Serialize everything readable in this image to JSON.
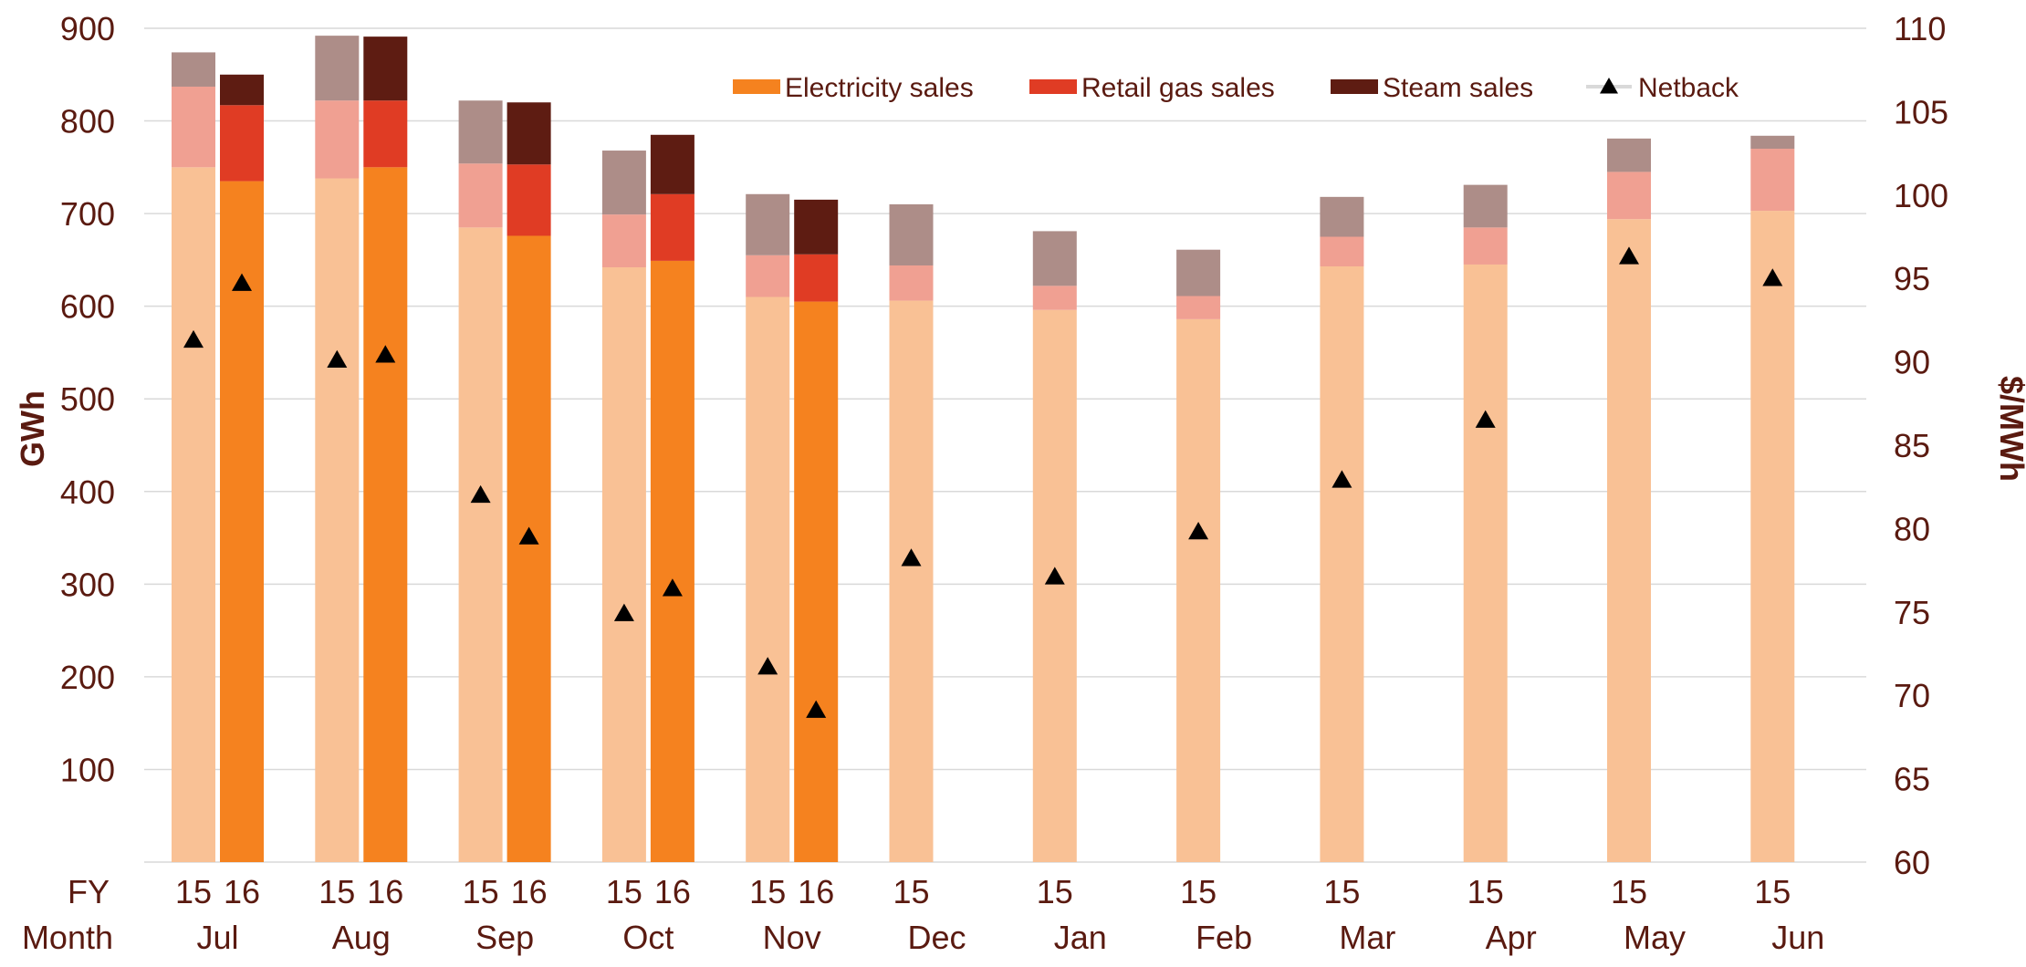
{
  "chart_data": {
    "type": "bar",
    "stacked": true,
    "title": "",
    "ylabel": "GWh",
    "y2label": "$/MWh",
    "ylim": [
      0,
      900
    ],
    "y2lim": [
      60,
      110
    ],
    "y_ticks": [
      100,
      200,
      300,
      400,
      500,
      600,
      700,
      800,
      900
    ],
    "y2_ticks": [
      60,
      65,
      70,
      75,
      80,
      85,
      90,
      95,
      100,
      105,
      110
    ],
    "grid": true,
    "legend_position": "top",
    "row_labels": {
      "fy": "FY",
      "month": "Month"
    },
    "legend": [
      {
        "key": "electricity",
        "label": "Electricity sales",
        "color": "#f5821f"
      },
      {
        "key": "gas",
        "label": "Retail gas sales",
        "color": "#e03c24"
      },
      {
        "key": "steam",
        "label": "Steam sales",
        "color": "#5e1c12"
      },
      {
        "key": "netback",
        "label": "Netback",
        "color": "#000000",
        "marker": "triangle"
      }
    ],
    "categories": [
      {
        "month": "Jul",
        "bars": [
          {
            "fy": "15",
            "electricity": 750,
            "gas": 87,
            "steam": 37,
            "netback": 91.3
          },
          {
            "fy": "16",
            "electricity": 735,
            "gas": 82,
            "steam": 33,
            "netback": 94.7
          }
        ]
      },
      {
        "month": "Aug",
        "bars": [
          {
            "fy": "15",
            "electricity": 738,
            "gas": 84,
            "steam": 70,
            "netback": 90.1
          },
          {
            "fy": "16",
            "electricity": 750,
            "gas": 72,
            "steam": 69,
            "netback": 90.4
          }
        ]
      },
      {
        "month": "Sep",
        "bars": [
          {
            "fy": "15",
            "electricity": 685,
            "gas": 69,
            "steam": 68,
            "netback": 82.0
          },
          {
            "fy": "16",
            "electricity": 676,
            "gas": 77,
            "steam": 67,
            "netback": 79.5
          }
        ]
      },
      {
        "month": "Oct",
        "bars": [
          {
            "fy": "15",
            "electricity": 642,
            "gas": 57,
            "steam": 69,
            "netback": 74.9
          },
          {
            "fy": "16",
            "electricity": 649,
            "gas": 72,
            "steam": 64,
            "netback": 76.4
          }
        ]
      },
      {
        "month": "Nov",
        "bars": [
          {
            "fy": "15",
            "electricity": 610,
            "gas": 45,
            "steam": 66,
            "netback": 71.7
          },
          {
            "fy": "16",
            "electricity": 605,
            "gas": 51,
            "steam": 59,
            "netback": 69.1
          }
        ]
      },
      {
        "month": "Dec",
        "bars": [
          {
            "fy": "15",
            "electricity": 606,
            "gas": 38,
            "steam": 66,
            "netback": 78.2
          }
        ]
      },
      {
        "month": "Jan",
        "bars": [
          {
            "fy": "15",
            "electricity": 596,
            "gas": 26,
            "steam": 59,
            "netback": 77.1
          }
        ]
      },
      {
        "month": "Feb",
        "bars": [
          {
            "fy": "15",
            "electricity": 586,
            "gas": 25,
            "steam": 50,
            "netback": 79.8
          }
        ]
      },
      {
        "month": "Mar",
        "bars": [
          {
            "fy": "15",
            "electricity": 643,
            "gas": 32,
            "steam": 43,
            "netback": 82.9
          }
        ]
      },
      {
        "month": "Apr",
        "bars": [
          {
            "fy": "15",
            "electricity": 645,
            "gas": 40,
            "steam": 46,
            "netback": 86.5
          }
        ]
      },
      {
        "month": "May",
        "bars": [
          {
            "fy": "15",
            "electricity": 694,
            "gas": 51,
            "steam": 36,
            "netback": 96.3
          }
        ]
      },
      {
        "month": "Jun",
        "bars": [
          {
            "fy": "15",
            "electricity": 703,
            "gas": 67,
            "steam": 14,
            "netback": 95.0
          }
        ]
      }
    ],
    "fy15_faded_colors": {
      "electricity": "#f9c195",
      "gas": "#f0a092",
      "steam": "#ad8d88"
    }
  }
}
